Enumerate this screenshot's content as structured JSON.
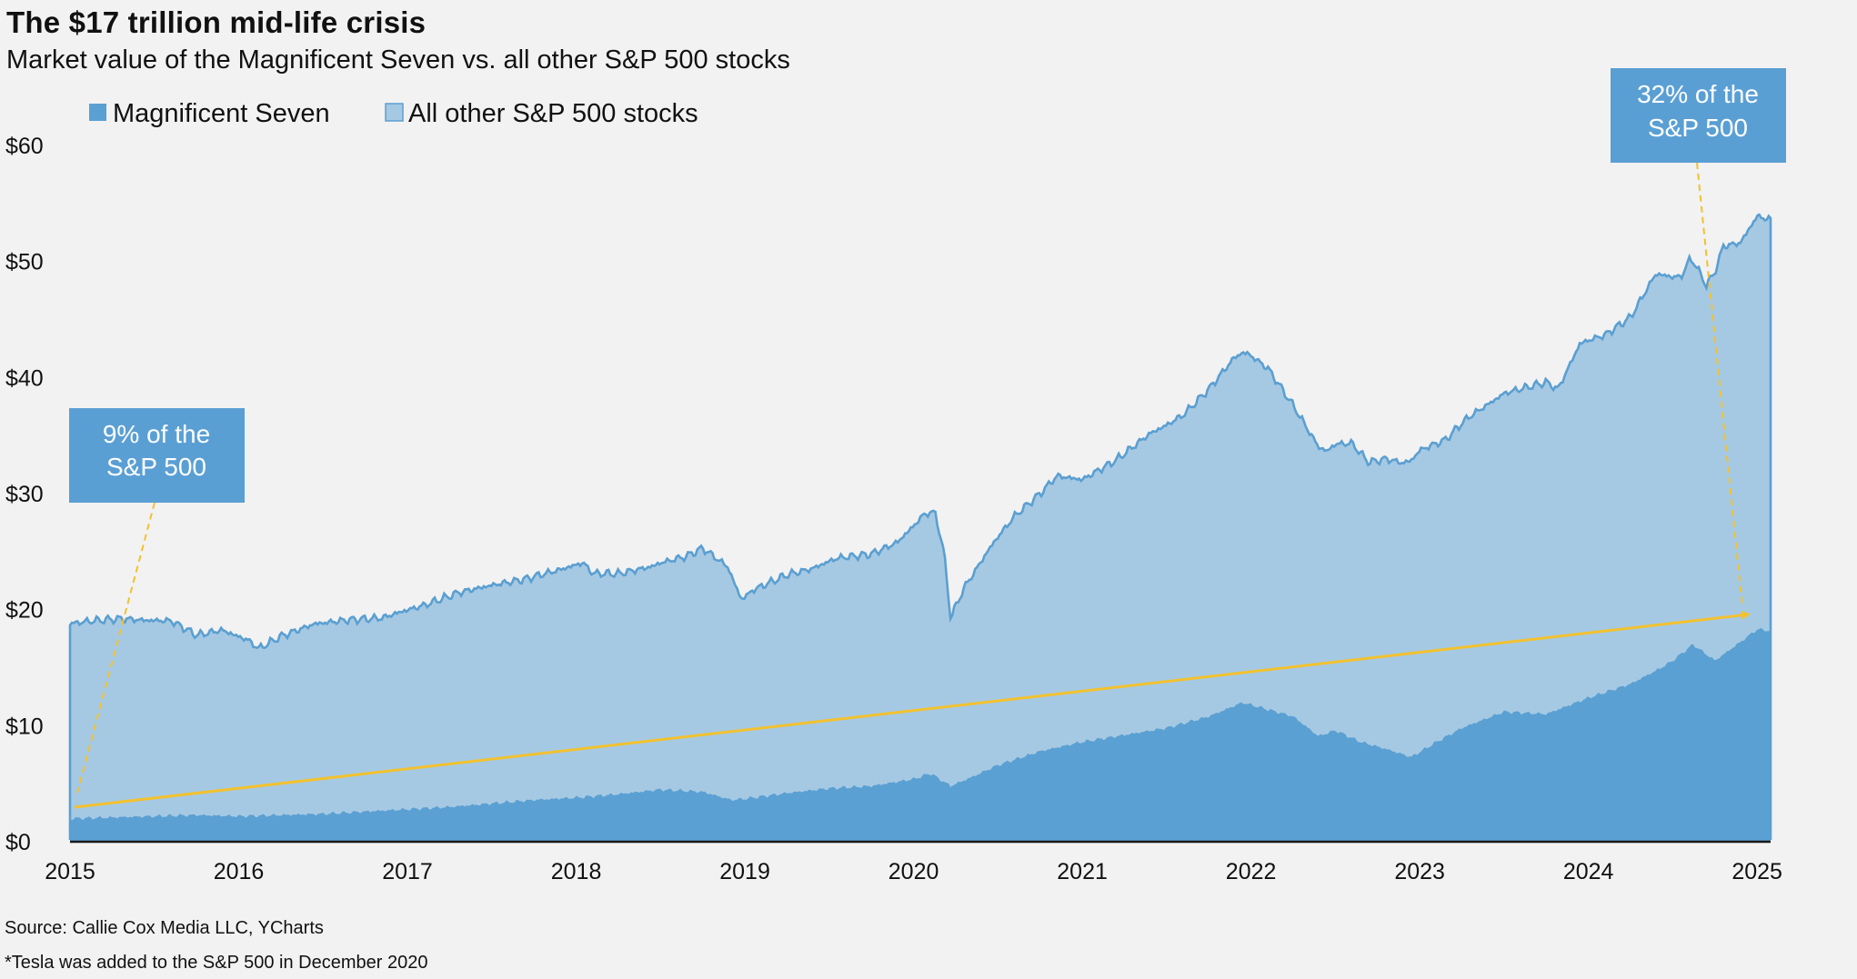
{
  "title": "The $17 trillion mid-life crisis",
  "subtitle": "Market value of the Magnificent Seven vs. all other S&P 500 stocks",
  "source": "Source: Callie Cox Media LLC, YCharts",
  "footnote": "*Tesla was added to the S&P 500 in December 2020",
  "colors": {
    "mag7": "#5aa0d2",
    "others": "#a6c9e3",
    "others_line": "#5b9fd1",
    "arrow": "#f2c12e",
    "annotation_bg": "#5a9fd4",
    "background": "#f2f2f2"
  },
  "chart_data": {
    "type": "area",
    "stacked": true,
    "y_tick_labels": [
      "$0",
      "$10",
      "$20",
      "$30",
      "$40",
      "$50",
      "$60"
    ],
    "ylim": [
      0,
      60
    ],
    "x_tick_labels": [
      "2015",
      "2016",
      "2017",
      "2018",
      "2019",
      "2020",
      "2021",
      "2022",
      "2023",
      "2024",
      "2025"
    ],
    "xlim": [
      2015.0,
      2025.08
    ],
    "legend_position": "top-left",
    "grid": false,
    "series": [
      {
        "name": "Magnificent Seven",
        "x": [
          2015.0,
          2015.25,
          2015.5,
          2015.75,
          2016.0,
          2016.25,
          2016.5,
          2016.75,
          2017.0,
          2017.25,
          2017.5,
          2017.75,
          2018.0,
          2018.25,
          2018.5,
          2018.75,
          2018.92,
          2019.0,
          2019.25,
          2019.5,
          2019.75,
          2020.0,
          2020.1,
          2020.22,
          2020.35,
          2020.5,
          2020.75,
          2021.0,
          2021.25,
          2021.5,
          2021.75,
          2021.95,
          2022.1,
          2022.25,
          2022.4,
          2022.5,
          2022.65,
          2022.8,
          2022.95,
          2023.1,
          2023.25,
          2023.5,
          2023.75,
          2024.0,
          2024.25,
          2024.42,
          2024.5,
          2024.62,
          2024.75,
          2024.9,
          2025.0,
          2025.08
        ],
        "values": [
          2.0,
          2.1,
          2.2,
          2.3,
          2.2,
          2.3,
          2.4,
          2.6,
          2.8,
          3.0,
          3.3,
          3.6,
          3.8,
          4.1,
          4.5,
          4.3,
          3.6,
          3.7,
          4.2,
          4.6,
          4.8,
          5.4,
          5.9,
          4.8,
          5.6,
          6.6,
          7.8,
          8.6,
          9.2,
          9.8,
          10.8,
          12.0,
          11.4,
          10.8,
          9.1,
          9.6,
          8.6,
          8.0,
          7.3,
          8.6,
          9.8,
          11.2,
          11.0,
          12.4,
          13.6,
          14.9,
          15.6,
          17.0,
          15.6,
          17.2,
          18.3,
          18.2
        ]
      },
      {
        "name": "All other S&P 500 stocks",
        "x": [
          2015.0,
          2015.15,
          2015.3,
          2015.45,
          2015.6,
          2015.75,
          2015.9,
          2016.05,
          2016.12,
          2016.25,
          2016.45,
          2016.65,
          2016.85,
          2016.95,
          2017.1,
          2017.3,
          2017.5,
          2017.7,
          2017.9,
          2018.04,
          2018.1,
          2018.25,
          2018.45,
          2018.65,
          2018.75,
          2018.9,
          2018.98,
          2019.05,
          2019.25,
          2019.4,
          2019.55,
          2019.75,
          2019.9,
          2020.05,
          2020.13,
          2020.18,
          2020.22,
          2020.3,
          2020.45,
          2020.6,
          2020.75,
          2020.85,
          2021.0,
          2021.2,
          2021.4,
          2021.6,
          2021.75,
          2021.9,
          2021.98,
          2022.1,
          2022.25,
          2022.45,
          2022.6,
          2022.7,
          2022.8,
          2022.9,
          2023.0,
          2023.15,
          2023.3,
          2023.45,
          2023.6,
          2023.75,
          2023.82,
          2023.95,
          2024.1,
          2024.25,
          2024.4,
          2024.55,
          2024.6,
          2024.7,
          2024.8,
          2024.9,
          2025.0,
          2025.08
        ],
        "values": [
          16.8,
          17.0,
          17.1,
          16.9,
          16.8,
          15.5,
          16.0,
          15.2,
          14.4,
          15.4,
          16.4,
          16.6,
          16.6,
          17.0,
          17.5,
          18.4,
          18.8,
          19.1,
          19.7,
          20.2,
          19.2,
          19.0,
          19.3,
          20.2,
          21.0,
          20.0,
          17.2,
          17.9,
          18.8,
          19.1,
          19.8,
          20.0,
          20.6,
          22.4,
          22.6,
          19.8,
          14.5,
          16.6,
          19.0,
          21.0,
          22.2,
          23.4,
          22.6,
          23.8,
          25.6,
          26.6,
          28.2,
          30.0,
          30.2,
          29.4,
          26.8,
          24.3,
          25.4,
          24.3,
          25.0,
          25.1,
          26.0,
          25.6,
          26.6,
          27.2,
          27.9,
          28.6,
          27.6,
          30.8,
          30.8,
          31.6,
          34.2,
          32.5,
          33.4,
          31.8,
          35.2,
          34.4,
          35.6,
          35.4
        ]
      }
    ],
    "annotations": [
      "9% of the S&P 500",
      "32% of the S&P 500"
    ]
  },
  "annotation_boxes": [
    {
      "line1": "9% of the",
      "line2": "S&P 500"
    },
    {
      "line1": "32% of the",
      "line2": "S&P 500"
    }
  ]
}
